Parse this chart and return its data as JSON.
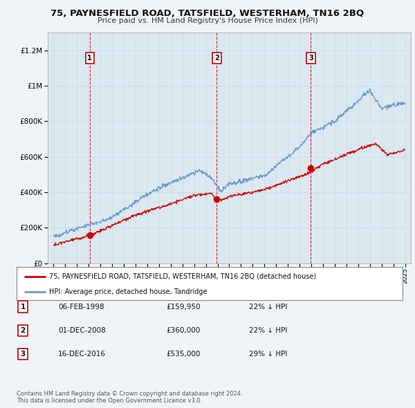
{
  "title": "75, PAYNESFIELD ROAD, TATSFIELD, WESTERHAM, TN16 2BQ",
  "subtitle": "Price paid vs. HM Land Registry's House Price Index (HPI)",
  "sales": [
    {
      "label": "1",
      "date": 1998.09,
      "price": 159950,
      "pct": "22% ↓ HPI",
      "date_str": "06-FEB-1998"
    },
    {
      "label": "2",
      "date": 2008.92,
      "price": 360000,
      "pct": "22% ↓ HPI",
      "date_str": "01-DEC-2008"
    },
    {
      "label": "3",
      "date": 2016.96,
      "price": 535000,
      "pct": "29% ↓ HPI",
      "date_str": "16-DEC-2016"
    }
  ],
  "legend_red": "75, PAYNESFIELD ROAD, TATSFIELD, WESTERHAM, TN16 2BQ (detached house)",
  "legend_blue": "HPI: Average price, detached house, Tandridge",
  "footer1": "Contains HM Land Registry data © Crown copyright and database right 2024.",
  "footer2": "This data is licensed under the Open Government Licence v3.0.",
  "red_color": "#cc0000",
  "blue_color": "#6699cc",
  "background_color": "#f0f4f8",
  "plot_bg_color": "#dce8f0",
  "ylim": [
    0,
    1300000
  ],
  "xlim_start": 1994.5,
  "xlim_end": 2025.5
}
